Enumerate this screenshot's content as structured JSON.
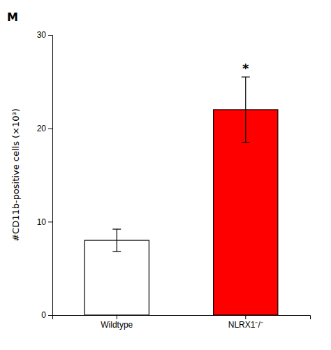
{
  "chart_data": {
    "type": "bar",
    "categories": [
      "Wildtype",
      "NLRX1⁻/⁻"
    ],
    "values": [
      8.0,
      22.0
    ],
    "errors": [
      1.2,
      3.5
    ],
    "colors": [
      "#ffffff",
      "#ff0000"
    ],
    "ylabel": "#CD11b-positive cells (×10³)",
    "ylim": [
      0,
      30
    ],
    "yticks": [
      0,
      10,
      20,
      30
    ],
    "grid": false,
    "annotations": [
      {
        "text": "*",
        "category": "NLRX1⁻/⁻"
      },
      {
        "text": "M"
      }
    ]
  }
}
